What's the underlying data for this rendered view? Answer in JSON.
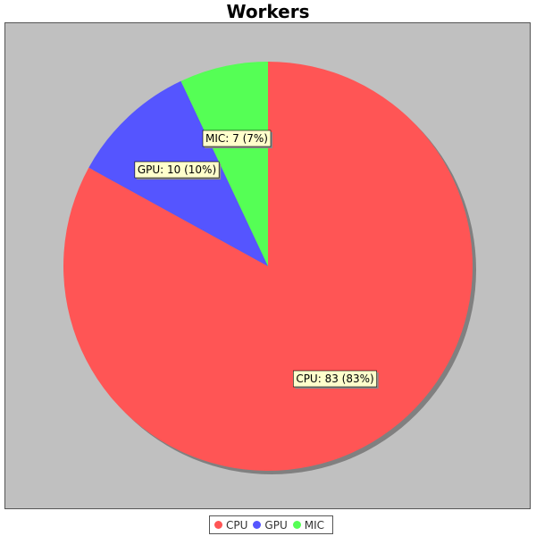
{
  "chart_data": {
    "type": "pie",
    "title": "Workers",
    "slices": [
      {
        "name": "CPU",
        "value": 83,
        "percent": "83%",
        "label": "CPU: 83 (83%)",
        "color": "#ff5555"
      },
      {
        "name": "GPU",
        "value": 10,
        "percent": "10%",
        "label": "GPU: 10 (10%)",
        "color": "#5555ff"
      },
      {
        "name": "MIC",
        "value": 7,
        "percent": "7%",
        "label": "MIC: 7 (7%)",
        "color": "#55ff55"
      }
    ],
    "legend_position": "bottom",
    "plot_background": "#c0c0c0",
    "label_background": "#ffffcc"
  }
}
